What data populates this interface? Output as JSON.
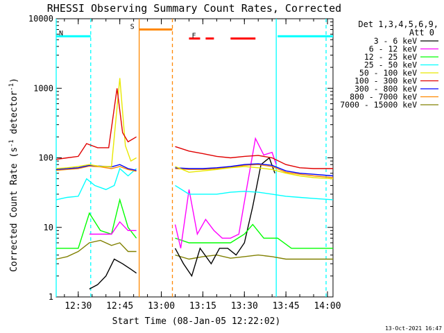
{
  "chart_data": {
    "type": "line",
    "title": "RHESSI Observing Summary Count Rates, Corrected",
    "ylabel": "Corrected Count Rate (s⁻¹ detector⁻¹)",
    "ylabel_main": "Corrected Count Rate (s",
    "ylabel_sup1": "-1",
    "ylabel_mid": " detector",
    "ylabel_sup2": "-1",
    "ylabel_end": ")",
    "xlabel": "Start Time (08-Jan-05 12:22:02)",
    "yscale": "log",
    "ylim": [
      1,
      10000
    ],
    "xlim_minutes": [
      "12:22:02",
      "14:02:00"
    ],
    "x_ticks": [
      "12:30",
      "12:45",
      "13:00",
      "13:15",
      "13:30",
      "13:45",
      "14:00"
    ],
    "y_ticks": [
      "1",
      "10",
      "100",
      "1000",
      "10000"
    ],
    "timestamp": "13-Oct-2021 16:47",
    "legend": {
      "header1": "Det 1,3,4,5,6,9,",
      "header2": "Att 0",
      "position": "right",
      "entries": [
        {
          "label": "3 - 6 keV",
          "color": "#000000"
        },
        {
          "label": "6 - 12 keV",
          "color": "#ff00ff"
        },
        {
          "label": "12 - 25 keV",
          "color": "#00ff00"
        },
        {
          "label": "25 - 50 keV",
          "color": "#00ffff"
        },
        {
          "label": "50 - 100 keV",
          "color": "#e8e800"
        },
        {
          "label": "100 - 300 keV",
          "color": "#e00000"
        },
        {
          "label": "300 - 800 keV",
          "color": "#0000ff"
        },
        {
          "label": "800 - 7000 keV",
          "color": "#ff8800"
        },
        {
          "label": "7000 - 15000 keV",
          "color": "#808000"
        }
      ]
    },
    "flags": {
      "night": {
        "label": "N",
        "color": "#00ffff",
        "intervals": [
          [
            "12:22:02",
            "12:34:30"
          ],
          [
            "13:42:00",
            "14:02:00"
          ]
        ],
        "level": 5600
      },
      "saa": {
        "label": "S",
        "color": "#ff8800",
        "intervals": [
          [
            "12:52:00",
            "13:04:00"
          ]
        ],
        "level": 7000
      },
      "flare": {
        "label": "F",
        "color": "#ff0000",
        "intervals": [
          [
            "13:10:00",
            "13:14:00"
          ],
          [
            "13:16:00",
            "13:19:00"
          ],
          [
            "13:25:00",
            "13:34:00"
          ]
        ],
        "level": 5200
      }
    },
    "boundary_lines": [
      {
        "time": "12:22:02",
        "color": "#00ffff",
        "style": "solid"
      },
      {
        "time": "12:34:30",
        "color": "#00ffff",
        "style": "dashed"
      },
      {
        "time": "12:52:00",
        "color": "#ff8800",
        "style": "solid"
      },
      {
        "time": "13:04:00",
        "color": "#ff8800",
        "style": "dashed"
      },
      {
        "time": "13:41:30",
        "color": "#00ffff",
        "style": "solid"
      },
      {
        "time": "13:59:30",
        "color": "#00ffff",
        "style": "dashed"
      }
    ],
    "series": [
      {
        "name": "3 - 6 keV",
        "color": "#000000",
        "points": [
          [
            "12:34:00",
            1.3
          ],
          [
            "12:37:00",
            1.5
          ],
          [
            "12:40:00",
            2
          ],
          [
            "12:43:00",
            3.5
          ],
          [
            "12:46:00",
            3
          ],
          [
            "12:49:00",
            2.5
          ],
          [
            "12:51:00",
            2.2
          ],
          [
            "13:05:00",
            5
          ],
          [
            "13:08:00",
            3
          ],
          [
            "13:11:00",
            2
          ],
          [
            "13:14:00",
            5
          ],
          [
            "13:18:00",
            3
          ],
          [
            "13:21:00",
            5
          ],
          [
            "13:24:00",
            5
          ],
          [
            "13:27:00",
            4
          ],
          [
            "13:30:00",
            6
          ],
          [
            "13:33:00",
            20
          ],
          [
            "13:36:00",
            80
          ],
          [
            "13:39:00",
            100
          ],
          [
            "13:41:00",
            60
          ]
        ]
      },
      {
        "name": "6 - 12 keV",
        "color": "#ff00ff",
        "points": [
          [
            "12:34:00",
            8
          ],
          [
            "12:38:00",
            8
          ],
          [
            "12:42:00",
            8
          ],
          [
            "12:45:00",
            12
          ],
          [
            "12:48:00",
            9
          ],
          [
            "12:51:00",
            9
          ],
          [
            "13:05:00",
            11
          ],
          [
            "13:07:00",
            5
          ],
          [
            "13:10:00",
            35
          ],
          [
            "13:13:00",
            8
          ],
          [
            "13:16:00",
            13
          ],
          [
            "13:19:00",
            9
          ],
          [
            "13:22:00",
            7
          ],
          [
            "13:25:00",
            7
          ],
          [
            "13:28:00",
            8
          ],
          [
            "13:31:00",
            40
          ],
          [
            "13:34:00",
            190
          ],
          [
            "13:37:00",
            110
          ],
          [
            "13:40:00",
            120
          ],
          [
            "13:41:30",
            80
          ]
        ]
      },
      {
        "name": "12 - 25 keV",
        "color": "#00ff00",
        "points": [
          [
            "12:22:02",
            5
          ],
          [
            "12:26:00",
            5
          ],
          [
            "12:30:00",
            5
          ],
          [
            "12:34:00",
            16
          ],
          [
            "12:38:00",
            9
          ],
          [
            "12:42:00",
            8
          ],
          [
            "12:45:00",
            25
          ],
          [
            "12:48:00",
            10
          ],
          [
            "12:51:00",
            7
          ],
          [
            "13:05:00",
            7
          ],
          [
            "13:10:00",
            6
          ],
          [
            "13:15:00",
            6
          ],
          [
            "13:20:00",
            6
          ],
          [
            "13:25:00",
            6
          ],
          [
            "13:30:00",
            8
          ],
          [
            "13:33:00",
            11
          ],
          [
            "13:37:00",
            7
          ],
          [
            "13:42:00",
            7
          ],
          [
            "13:47:00",
            5
          ],
          [
            "13:52:00",
            5
          ],
          [
            "13:57:00",
            5
          ],
          [
            "14:02:00",
            5
          ]
        ]
      },
      {
        "name": "25 - 50 keV",
        "color": "#00ffff",
        "points": [
          [
            "12:22:02",
            25
          ],
          [
            "12:26:00",
            27
          ],
          [
            "12:30:00",
            28
          ],
          [
            "12:33:00",
            50
          ],
          [
            "12:36:00",
            40
          ],
          [
            "12:40:00",
            35
          ],
          [
            "12:43:00",
            40
          ],
          [
            "12:45:00",
            70
          ],
          [
            "12:48:00",
            55
          ],
          [
            "12:51:00",
            70
          ],
          [
            "13:05:00",
            40
          ],
          [
            "13:10:00",
            30
          ],
          [
            "13:15:00",
            30
          ],
          [
            "13:20:00",
            30
          ],
          [
            "13:25:00",
            32
          ],
          [
            "13:30:00",
            33
          ],
          [
            "13:35:00",
            32
          ],
          [
            "13:40:00",
            30
          ],
          [
            "13:45:00",
            28
          ],
          [
            "13:50:00",
            27
          ],
          [
            "13:55:00",
            26
          ],
          [
            "14:02:00",
            25
          ]
        ]
      },
      {
        "name": "50 - 100 keV",
        "color": "#e8e800",
        "points": [
          [
            "12:22:02",
            70
          ],
          [
            "12:26:00",
            72
          ],
          [
            "12:30:00",
            75
          ],
          [
            "12:34:00",
            80
          ],
          [
            "12:38:00",
            75
          ],
          [
            "12:42:00",
            75
          ],
          [
            "12:45:00",
            1400
          ],
          [
            "12:47:00",
            150
          ],
          [
            "12:49:00",
            90
          ],
          [
            "12:51:00",
            100
          ],
          [
            "13:05:00",
            75
          ],
          [
            "13:10:00",
            62
          ],
          [
            "13:15:00",
            65
          ],
          [
            "13:20:00",
            68
          ],
          [
            "13:25:00",
            72
          ],
          [
            "13:30:00",
            75
          ],
          [
            "13:35:00",
            72
          ],
          [
            "13:40:00",
            68
          ],
          [
            "13:45:00",
            60
          ],
          [
            "13:50:00",
            55
          ],
          [
            "13:55:00",
            52
          ],
          [
            "14:02:00",
            50
          ]
        ]
      },
      {
        "name": "100 - 300 keV",
        "color": "#e00000",
        "points": [
          [
            "12:22:02",
            95
          ],
          [
            "12:26:00",
            100
          ],
          [
            "12:30:00",
            105
          ],
          [
            "12:33:00",
            160
          ],
          [
            "12:37:00",
            140
          ],
          [
            "12:41:00",
            140
          ],
          [
            "12:44:00",
            1000
          ],
          [
            "12:46:00",
            230
          ],
          [
            "12:48:00",
            170
          ],
          [
            "12:51:00",
            200
          ],
          [
            "13:05:00",
            145
          ],
          [
            "13:10:00",
            125
          ],
          [
            "13:15:00",
            115
          ],
          [
            "13:20:00",
            105
          ],
          [
            "13:25:00",
            100
          ],
          [
            "13:30:00",
            105
          ],
          [
            "13:35:00",
            108
          ],
          [
            "13:40:00",
            100
          ],
          [
            "13:45:00",
            80
          ],
          [
            "13:50:00",
            72
          ],
          [
            "13:55:00",
            70
          ],
          [
            "14:02:00",
            70
          ]
        ]
      },
      {
        "name": "300 - 800 keV",
        "color": "#0000ff",
        "points": [
          [
            "12:22:02",
            68
          ],
          [
            "12:26:00",
            70
          ],
          [
            "12:30:00",
            72
          ],
          [
            "12:34:00",
            78
          ],
          [
            "12:38:00",
            76
          ],
          [
            "12:42:00",
            74
          ],
          [
            "12:45:00",
            80
          ],
          [
            "12:48:00",
            70
          ],
          [
            "12:51:00",
            66
          ],
          [
            "13:05:00",
            72
          ],
          [
            "13:10:00",
            70
          ],
          [
            "13:15:00",
            70
          ],
          [
            "13:20:00",
            72
          ],
          [
            "13:25:00",
            75
          ],
          [
            "13:30:00",
            80
          ],
          [
            "13:35:00",
            82
          ],
          [
            "13:40:00",
            78
          ],
          [
            "13:45:00",
            65
          ],
          [
            "13:50:00",
            60
          ],
          [
            "13:55:00",
            58
          ],
          [
            "14:02:00",
            55
          ]
        ]
      },
      {
        "name": "800 - 7000 keV",
        "color": "#ff8800",
        "points": [
          [
            "12:22:02",
            66
          ],
          [
            "12:26:00",
            68
          ],
          [
            "12:30:00",
            70
          ],
          [
            "12:34:00",
            76
          ],
          [
            "12:38:00",
            74
          ],
          [
            "12:42:00",
            70
          ],
          [
            "12:45:00",
            75
          ],
          [
            "12:48:00",
            68
          ],
          [
            "12:51:00",
            64
          ],
          [
            "13:05:00",
            70
          ],
          [
            "13:10:00",
            68
          ],
          [
            "13:15:00",
            68
          ],
          [
            "13:20:00",
            70
          ],
          [
            "13:25:00",
            73
          ],
          [
            "13:30:00",
            78
          ],
          [
            "13:35:00",
            80
          ],
          [
            "13:40:00",
            75
          ],
          [
            "13:45:00",
            62
          ],
          [
            "13:50:00",
            58
          ],
          [
            "13:55:00",
            55
          ],
          [
            "14:02:00",
            52
          ]
        ]
      },
      {
        "name": "7000 - 15000 keV",
        "color": "#808000",
        "points": [
          [
            "12:22:02",
            3.5
          ],
          [
            "12:26:00",
            3.8
          ],
          [
            "12:30:00",
            4.5
          ],
          [
            "12:34:00",
            6
          ],
          [
            "12:38:00",
            6.5
          ],
          [
            "12:42:00",
            5.5
          ],
          [
            "12:45:00",
            6
          ],
          [
            "12:48:00",
            4.5
          ],
          [
            "12:51:00",
            4.5
          ],
          [
            "13:05:00",
            4
          ],
          [
            "13:10:00",
            3.5
          ],
          [
            "13:15:00",
            3.8
          ],
          [
            "13:20:00",
            4
          ],
          [
            "13:25:00",
            3.6
          ],
          [
            "13:30:00",
            3.8
          ],
          [
            "13:35:00",
            4
          ],
          [
            "13:40:00",
            3.8
          ],
          [
            "13:45:00",
            3.5
          ],
          [
            "13:50:00",
            3.5
          ],
          [
            "13:55:00",
            3.5
          ],
          [
            "14:02:00",
            3.5
          ]
        ]
      }
    ]
  }
}
